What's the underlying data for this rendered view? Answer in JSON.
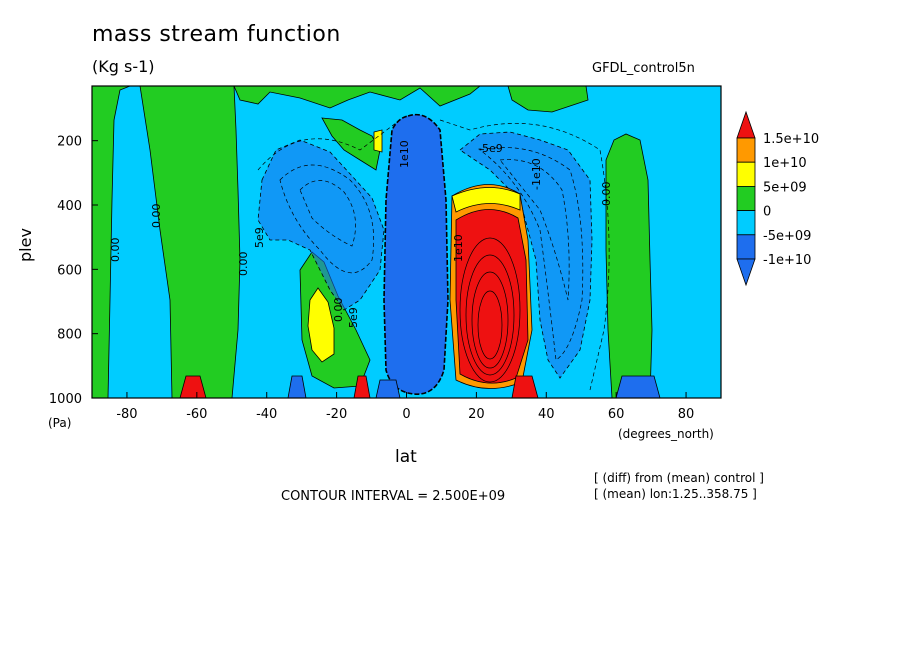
{
  "chart_data": {
    "type": "heatmap",
    "title": "mass stream function",
    "units": "(Kg s-1)",
    "dataset": "GFDL_control5n",
    "xlabel": "lat",
    "x_units": "(degrees_north)",
    "ylabel": "plev",
    "y_units": "(Pa)",
    "xlim": [
      -90,
      90
    ],
    "ylim": [
      1000,
      30
    ],
    "x_ticks": [
      "-80",
      "-60",
      "-40",
      "-20",
      "0",
      "20",
      "40",
      "60",
      "80"
    ],
    "y_ticks": [
      "200",
      "400",
      "600",
      "800",
      "1000"
    ],
    "contour_interval": "CONTOUR INTERVAL = 2.500E+09",
    "notes": [
      "[ (diff) from (mean) control ]",
      "[ (mean) lon:1.25..358.75 ]"
    ],
    "legend": {
      "placement": "right",
      "labels": [
        "1.5e+10",
        "1e+10",
        "5e+09",
        "0",
        "-5e+09",
        "-1e+10"
      ],
      "colors": [
        "#ee1111",
        "#ff9900",
        "#ffff00",
        "#22cc22",
        "#00ccff",
        "#1e6eee",
        "#cc0000"
      ]
    },
    "contour_labels": [
      "0.00",
      "0.00",
      "0.00",
      "0.00",
      "0.00",
      "5e9",
      "5e9",
      "-5e9",
      "1e10",
      "-1e10",
      "1e10"
    ]
  }
}
